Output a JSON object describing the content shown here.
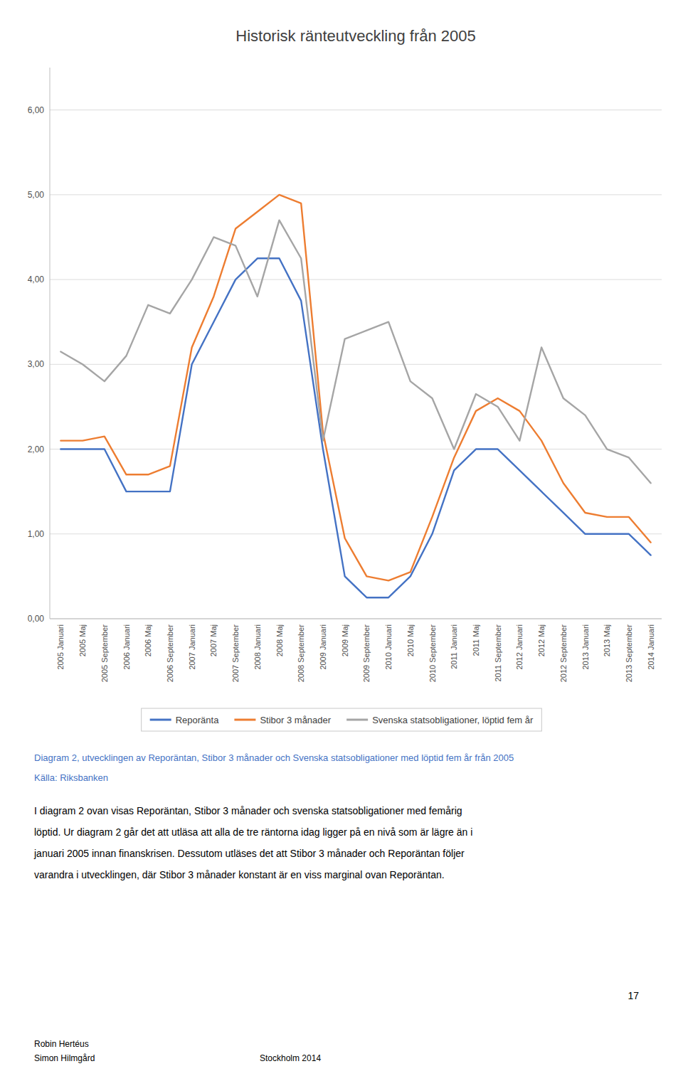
{
  "chart_data": {
    "type": "line",
    "title": "Historisk ränteutveckling från 2005",
    "categories": [
      "2005 Januari",
      "2005 Maj",
      "2005 September",
      "2006 Januari",
      "2006 Maj",
      "2006 September",
      "2007 Januari",
      "2007 Maj",
      "2007 September",
      "2008 Januari",
      "2008 Maj",
      "2008 September",
      "2009 Januari",
      "2009 Maj",
      "2009 September",
      "2010 Januari",
      "2010 Maj",
      "2010 September",
      "2011 Januari",
      "2011 Maj",
      "2011 September",
      "2012 Januari",
      "2012 Maj",
      "2012 September",
      "2013 Januari",
      "2013 Maj",
      "2013 September",
      "2014 Januari"
    ],
    "series": [
      {
        "name": "Reporänta",
        "color": "#4472C4",
        "values": [
          2.0,
          2.0,
          2.0,
          1.5,
          1.5,
          1.5,
          3.0,
          3.5,
          4.0,
          4.25,
          4.25,
          3.75,
          2.0,
          0.5,
          0.25,
          0.25,
          0.5,
          1.0,
          1.75,
          2.0,
          2.0,
          1.75,
          1.5,
          1.25,
          1.0,
          1.0,
          1.0,
          0.75
        ]
      },
      {
        "name": "Stibor 3 månader",
        "color": "#ED7D31",
        "values": [
          2.1,
          2.1,
          2.15,
          1.7,
          1.7,
          1.8,
          3.2,
          3.8,
          4.6,
          4.8,
          5.0,
          4.9,
          2.2,
          0.95,
          0.5,
          0.45,
          0.55,
          1.2,
          1.9,
          2.45,
          2.6,
          2.45,
          2.1,
          1.6,
          1.25,
          1.2,
          1.2,
          0.9
        ]
      },
      {
        "name": "Svenska statsobligationer, löptid fem år",
        "color": "#A5A5A5",
        "values": [
          3.15,
          3.0,
          2.8,
          3.1,
          3.7,
          3.6,
          4.0,
          4.5,
          4.4,
          3.8,
          4.7,
          4.25,
          2.1,
          3.3,
          3.4,
          3.5,
          2.8,
          2.6,
          2.0,
          2.65,
          2.5,
          2.1,
          3.2,
          2.6,
          2.4,
          2.0,
          1.9,
          1.6
        ]
      }
    ],
    "ylim": [
      0.0,
      6.5
    ],
    "yticks": [
      {
        "value": 0.0,
        "label": "0,00"
      },
      {
        "value": 1.0,
        "label": "1,00"
      },
      {
        "value": 2.0,
        "label": "2,00"
      },
      {
        "value": 3.0,
        "label": "3,00"
      },
      {
        "value": 4.0,
        "label": "4,00"
      },
      {
        "value": 5.0,
        "label": "5,00"
      },
      {
        "value": 6.0,
        "label": "6,00"
      }
    ],
    "grid": true,
    "legend": "bottom"
  },
  "caption": "Diagram 2, utvecklingen av Reporäntan, Stibor 3 månader och Svenska statsobligationer med löptid fem år från 2005",
  "source": "Källa: Riksbanken",
  "body": [
    "I diagram 2 ovan visas Reporäntan, Stibor 3 månader och svenska statsobligationer med femårig",
    "löptid. Ur diagram 2 går det att utläsa att alla de tre räntorna idag ligger på en nivå som är lägre än i",
    "januari 2005 innan finanskrisen. Dessutom utläses det att Stibor 3 månader och Reporäntan följer",
    "varandra i utvecklingen, där Stibor 3 månader konstant är en viss marginal ovan Reporäntan."
  ],
  "page_number": "17",
  "footer": [
    "Robin Hertéus",
    "Simon Hilmgård",
    "Stockholm 2014"
  ]
}
